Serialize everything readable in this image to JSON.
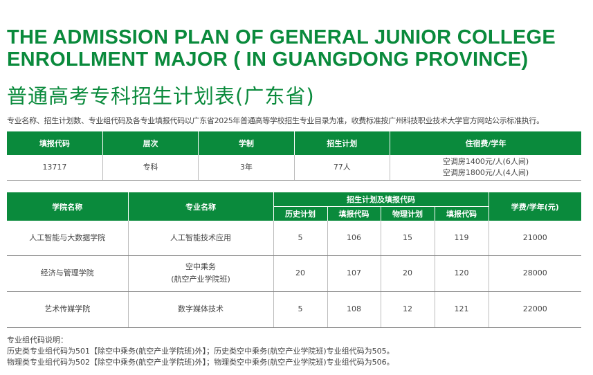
{
  "title_en": [
    "THE ADMISSION PLAN OF GENERAL JUNIOR COLLEGE",
    "ENROLLMENT MAJOR ( IN GUANGDONG PROVINCE)"
  ],
  "title_cn": "普通高考专科招生计划表(广东省)",
  "note": "专业名称、招生计划数、专业组代码及各专业填报代码以广东省2025年普通高等学校招生专业目录为准，收费标准按广州科技职业技术大学官方网站公示标准执行。",
  "table1": {
    "headers": [
      "填报代码",
      "层次",
      "学制",
      "招生计划",
      "住宿费/学年"
    ],
    "row": [
      "13717",
      "专科",
      "3年",
      "77人"
    ],
    "fees": [
      "空调房1400元/人(6人间)",
      "空调房1800元/人(4人间)"
    ]
  },
  "table2": {
    "headers": {
      "college": "学院名称",
      "major": "专业名称",
      "group": "招生计划及填报代码",
      "history_plan": "历史计划",
      "history_code": "填报代码",
      "physics_plan": "物理计划",
      "physics_code": "填报代码",
      "tuition": "学费/学年(元)"
    },
    "rows": [
      {
        "college": "人工智能与大数据学院",
        "major": [
          "人工智能技术应用",
          ""
        ],
        "history_plan": "5",
        "history_code": "106",
        "physics_plan": "15",
        "physics_code": "119",
        "tuition": "21000"
      },
      {
        "college": "经济与管理学院",
        "major": [
          "空中乘务",
          "(航空产业学院班)"
        ],
        "history_plan": "20",
        "history_code": "107",
        "physics_plan": "20",
        "physics_code": "120",
        "tuition": "28000"
      },
      {
        "college": "艺术传媒学院",
        "major": [
          "数字媒体技术",
          ""
        ],
        "history_plan": "5",
        "history_code": "108",
        "physics_plan": "12",
        "physics_code": "121",
        "tuition": "22000"
      }
    ]
  },
  "footer": [
    "专业组代码说明：",
    "历史类专业组代码为501【除空中乘务(航空产业学院班)外】；历史类空中乘务(航空产业学院班)专业组代码为505。",
    "物理类专业组代码为502【除空中乘务(航空产业学院班)外】；物理类空中乘务(航空产业学院班)专业组代码为506。"
  ],
  "colors": {
    "accent": "#0a8a3c"
  }
}
